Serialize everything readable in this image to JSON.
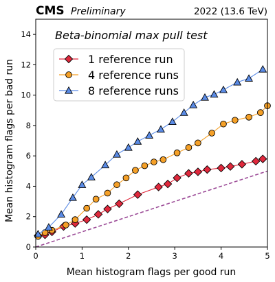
{
  "chart_data": {
    "type": "scatter",
    "header": {
      "experiment": "CMS",
      "status": "Preliminary",
      "energy": "2022 (13.6 TeV)"
    },
    "annotation": "Beta-binomial max pull test",
    "xlabel": "Mean histogram flags per good run",
    "ylabel": "Mean histogram flags per bad run",
    "xlim": [
      0,
      5
    ],
    "ylim": [
      0,
      15
    ],
    "xticks": [
      0,
      1,
      2,
      3,
      4,
      5
    ],
    "yticks": [
      0,
      2,
      4,
      6,
      8,
      10,
      12,
      14
    ],
    "grid": false,
    "legend_position": "top-left",
    "series": [
      {
        "name": "1 reference run",
        "marker": "diamond",
        "color": "#e0283c",
        "x": [
          0.05,
          0.2,
          0.35,
          0.6,
          0.85,
          1.1,
          1.35,
          1.55,
          1.8,
          2.2,
          2.65,
          2.85,
          3.05,
          3.3,
          3.5,
          3.7,
          4.0,
          4.2,
          4.45,
          4.75,
          4.9
        ],
        "y": [
          0.75,
          0.8,
          1.0,
          1.35,
          1.55,
          1.8,
          2.15,
          2.5,
          2.85,
          3.45,
          3.95,
          4.15,
          4.55,
          4.85,
          4.95,
          5.1,
          5.2,
          5.3,
          5.45,
          5.65,
          5.8
        ]
      },
      {
        "name": "4 reference runs",
        "marker": "circle",
        "color": "#f5a027",
        "x": [
          0.05,
          0.2,
          0.35,
          0.65,
          0.85,
          1.1,
          1.3,
          1.55,
          1.75,
          1.95,
          2.15,
          2.35,
          2.55,
          2.75,
          3.05,
          3.3,
          3.5,
          3.8,
          4.05,
          4.3,
          4.6,
          4.85,
          5.0
        ],
        "y": [
          0.7,
          0.95,
          1.1,
          1.45,
          1.8,
          2.55,
          3.15,
          3.55,
          4.1,
          4.55,
          5.05,
          5.35,
          5.6,
          5.75,
          6.2,
          6.55,
          6.85,
          7.5,
          8.1,
          8.35,
          8.55,
          8.85,
          9.3
        ]
      },
      {
        "name": "8 reference runs",
        "marker": "triangle",
        "color": "#5a8be6",
        "x": [
          0.05,
          0.28,
          0.55,
          0.8,
          1.0,
          1.2,
          1.5,
          1.75,
          2.0,
          2.2,
          2.45,
          2.7,
          2.95,
          3.2,
          3.4,
          3.65,
          3.85,
          4.05,
          4.35,
          4.6,
          4.9
        ],
        "y": [
          0.85,
          1.3,
          2.15,
          3.25,
          4.1,
          4.6,
          5.4,
          6.1,
          6.55,
          6.95,
          7.35,
          7.75,
          8.25,
          8.85,
          9.35,
          9.85,
          10.05,
          10.35,
          10.85,
          11.1,
          11.7
        ]
      },
      {
        "marker": "none",
        "linestyle": "dashed",
        "color": "#9b4a96",
        "x": [
          0,
          5
        ],
        "y": [
          0,
          5
        ]
      }
    ]
  }
}
